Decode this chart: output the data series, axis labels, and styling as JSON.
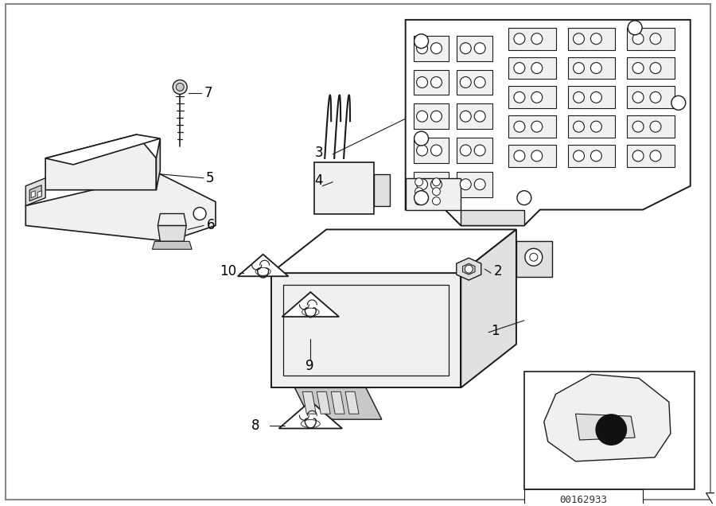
{
  "bg_color": "#ffffff",
  "border_color": "#444444",
  "diagram_id": "00162933",
  "line_color": "#1a1a1a",
  "fill_white": "#ffffff",
  "fill_light": "#f0f0f0",
  "fill_mid": "#e0e0e0",
  "fill_dark": "#c8c8c8"
}
